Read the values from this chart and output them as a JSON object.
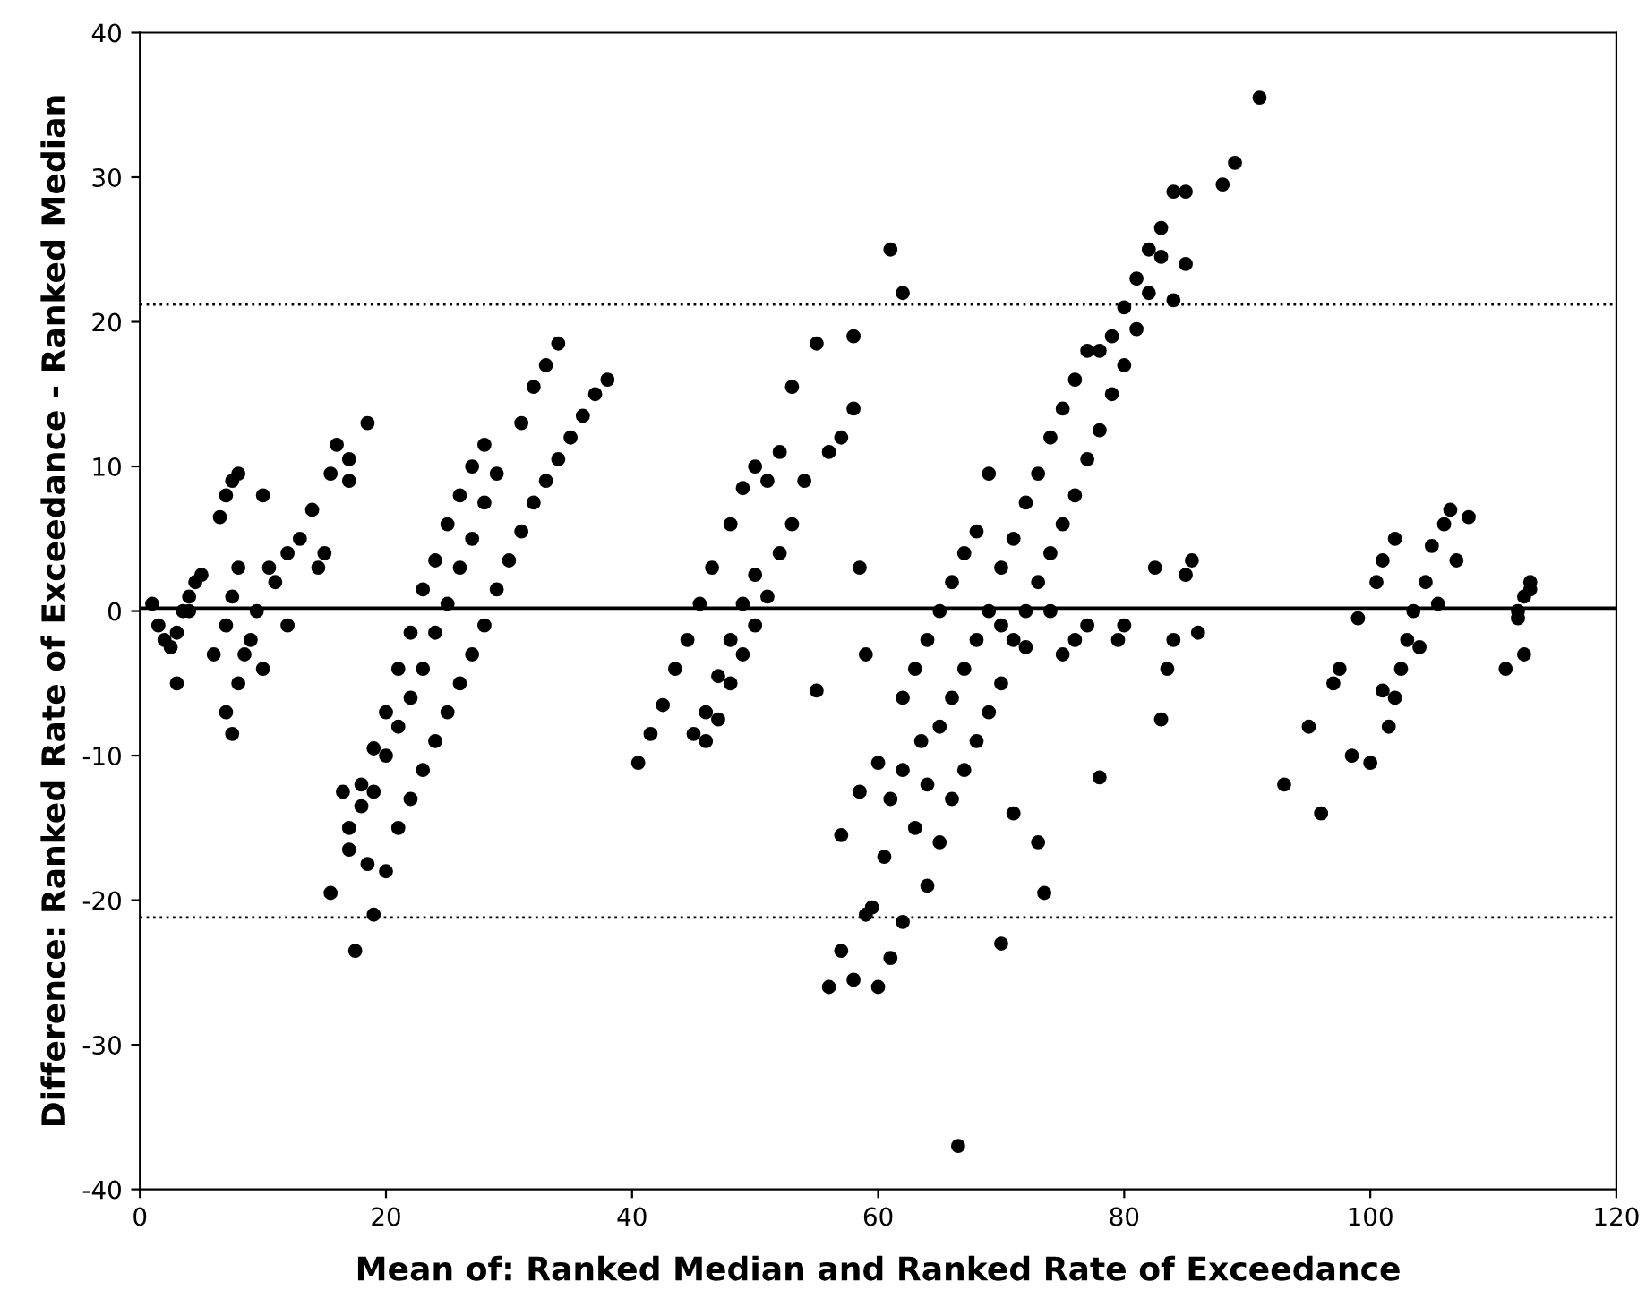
{
  "chart_data": {
    "type": "scatter",
    "xlabel": "Mean of: Ranked Median and Ranked Rate of Exceedance",
    "ylabel": "Difference: Ranked Rate of Exceedance - Ranked Median",
    "xlim": [
      0,
      120
    ],
    "xticks": [
      0,
      20,
      40,
      60,
      80,
      100,
      120
    ],
    "ylim": [
      -40,
      40
    ],
    "yticks": [
      -40,
      -30,
      -20,
      -10,
      0,
      10,
      20,
      30,
      40
    ],
    "grid": false,
    "legend": false,
    "marker": "circle",
    "ref_lines": [
      {
        "axis": "y",
        "value": 21.2,
        "color": "#000000",
        "line_style": "dotted"
      },
      {
        "axis": "y",
        "value": -21.2,
        "color": "#000000",
        "line_style": "dotted"
      },
      {
        "axis": "y",
        "value": 0.2,
        "color": "#000000",
        "line_style": "solid"
      }
    ],
    "series": [
      {
        "color": "#000000",
        "x": [
          1,
          1.5,
          2,
          2.5,
          3,
          3.5,
          4,
          4.5,
          5,
          3,
          4,
          6,
          6.5,
          7,
          7.5,
          8,
          7,
          7.5,
          8,
          7,
          7.5,
          8,
          8.5,
          9,
          9.5,
          10,
          10,
          10.5,
          11,
          12,
          12,
          13,
          14,
          14.5,
          15,
          15.5,
          16,
          17,
          17,
          18.5,
          15.5,
          17,
          18,
          19,
          20,
          21,
          22,
          23,
          24,
          25,
          26,
          27,
          28,
          17,
          18,
          19,
          20,
          21,
          22,
          23,
          24,
          25,
          26,
          27,
          28,
          29,
          31,
          32,
          33,
          34,
          20,
          21,
          22,
          23,
          24,
          25,
          26,
          27,
          28,
          29,
          30,
          31,
          32,
          33,
          34,
          35,
          36,
          37,
          38,
          17.5,
          19,
          18.5,
          16.5,
          40.5,
          41.5,
          42.5,
          43.5,
          44.5,
          45.5,
          46.5,
          45,
          46,
          47,
          48,
          49,
          50,
          51,
          52,
          46,
          47,
          48,
          49,
          50,
          51,
          52,
          53,
          54,
          48,
          49,
          50,
          53,
          55,
          56,
          57,
          58,
          58,
          58.5,
          55,
          56,
          57,
          58,
          59,
          59.5,
          60,
          61,
          62,
          57,
          58.5,
          59,
          60,
          60.5,
          61,
          62,
          63,
          63.5,
          64,
          65,
          66,
          67,
          68,
          69,
          70,
          71,
          72,
          73,
          74,
          75,
          76,
          77,
          62,
          63,
          64,
          65,
          66,
          67,
          68,
          66,
          67,
          68,
          69,
          70,
          71,
          72,
          73,
          74,
          75,
          76,
          77,
          78,
          79,
          80,
          81,
          82,
          83,
          78,
          79,
          80,
          81,
          82,
          83,
          84,
          85,
          84,
          85,
          88,
          89,
          91,
          61,
          62,
          66.5,
          70,
          71,
          73,
          73.5,
          64,
          65,
          69,
          70,
          78,
          79.5,
          80,
          82.5,
          83,
          83.5,
          84,
          85,
          85.5,
          86,
          72,
          74,
          75,
          76,
          77,
          93,
          95,
          96,
          97,
          97.5,
          98.5,
          99,
          100,
          100.5,
          101,
          101,
          102,
          101.5,
          102,
          102.5,
          103,
          103.5,
          104,
          104.5,
          105,
          105.5,
          106,
          106.5,
          107,
          108,
          111,
          112,
          112.5,
          112.5,
          113,
          113,
          112
        ],
        "values": [
          0.5,
          -1,
          -2,
          -2.5,
          -1.5,
          0,
          1,
          2,
          2.5,
          -5,
          0,
          -3,
          6.5,
          8,
          9,
          9.5,
          -1,
          1,
          3,
          -7,
          -8.5,
          -5,
          -3,
          -2,
          0,
          8,
          -4,
          3,
          2,
          -1,
          4,
          5,
          7,
          3,
          4,
          9.5,
          11.5,
          10.5,
          9,
          13,
          -19.5,
          -15,
          -12,
          -9.5,
          -7,
          -4,
          -1.5,
          1.5,
          3.5,
          6,
          8,
          10,
          11.5,
          -16.5,
          -13.5,
          -12.5,
          -10,
          -8,
          -6,
          -4,
          -1.5,
          0.5,
          3,
          5,
          7.5,
          9.5,
          13,
          15.5,
          17,
          18.5,
          -18,
          -15,
          -13,
          -11,
          -9,
          -7,
          -5,
          -3,
          -1,
          1.5,
          3.5,
          5.5,
          7.5,
          9,
          10.5,
          12,
          13.5,
          15,
          16,
          -23.5,
          -21,
          -17.5,
          -12.5,
          -10.5,
          -8.5,
          -6.5,
          -4,
          -2,
          0.5,
          3,
          -8.5,
          -7,
          -4.5,
          -2,
          0.5,
          2.5,
          9,
          11,
          -9,
          -7.5,
          -5,
          -3,
          -1,
          1,
          4,
          6,
          9,
          6,
          8.5,
          10,
          15.5,
          18.5,
          11,
          12,
          14,
          19,
          3,
          -5.5,
          -26,
          -23.5,
          -25.5,
          -21,
          -20.5,
          -26,
          -24,
          -21.5,
          -15.5,
          -12.5,
          -3,
          -10.5,
          -17,
          -13,
          -11,
          -15,
          -9,
          -12,
          -8,
          -6,
          -4,
          -2,
          0,
          3,
          5,
          7.5,
          9.5,
          12,
          14,
          16,
          18,
          -6,
          -4,
          -2,
          0,
          2,
          4,
          5.5,
          -13,
          -11,
          -9,
          -7,
          -5,
          -2,
          0,
          2,
          4,
          6,
          8,
          10.5,
          12.5,
          15,
          17,
          19.5,
          22,
          24.5,
          18,
          19,
          21,
          23,
          25,
          26.5,
          29,
          29,
          21.5,
          24,
          29.5,
          31,
          35.5,
          25,
          22,
          -37,
          -23,
          -14,
          -16,
          -19.5,
          -19,
          -16,
          9.5,
          -1,
          -11.5,
          -2,
          -1,
          3,
          -7.5,
          -4,
          -2,
          2.5,
          3.5,
          -1.5,
          -2.5,
          0,
          -3,
          -2,
          -1,
          -12,
          -8,
          -14,
          -5,
          -4,
          -10,
          -0.5,
          -10.5,
          2,
          -5.5,
          3.5,
          5,
          -8,
          -6,
          -4,
          -2,
          0,
          -2.5,
          2,
          4.5,
          0.5,
          6,
          7,
          3.5,
          6.5,
          -4,
          -0.5,
          -3,
          1,
          2,
          1.5,
          0
        ]
      }
    ]
  }
}
